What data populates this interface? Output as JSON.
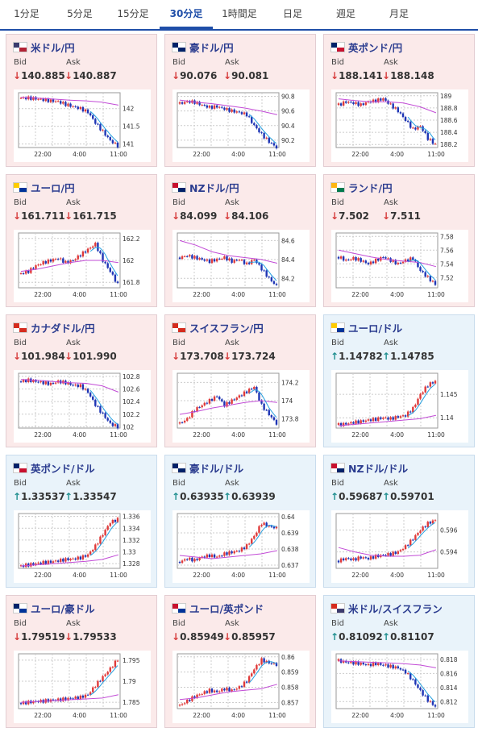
{
  "tabs": [
    {
      "label": "1分足",
      "active": false
    },
    {
      "label": "5分足",
      "active": false
    },
    {
      "label": "15分足",
      "active": false
    },
    {
      "label": "30分足",
      "active": true
    },
    {
      "label": "1時間足",
      "active": false
    },
    {
      "label": "日足",
      "active": false
    },
    {
      "label": "週足",
      "active": false
    },
    {
      "label": "月足",
      "active": false
    }
  ],
  "labels": {
    "bid": "Bid",
    "ask": "Ask"
  },
  "colors": {
    "up_bg": "#e9f3fa",
    "down_bg": "#fbeaea",
    "bull": "#e03a3a",
    "bear": "#1e35b5",
    "ma_long": "#c24bd6",
    "ma_short": "#25a0e0"
  },
  "x_ticks": [
    "22:00",
    "4:00",
    "11:00"
  ],
  "pairs": [
    {
      "name": "米ドル/円",
      "dir": "down",
      "arrow": "↓",
      "bid": "140.885",
      "ask": "140.887",
      "flag": "us",
      "chart_data": {
        "type": "candlestick",
        "ylim": [
          140.9,
          142.45
        ],
        "y_ticks": [
          "142",
          "141.5",
          "141"
        ],
        "trend": [
          142.3,
          142.3,
          142.28,
          142.25,
          142.22,
          142.2,
          142.12,
          142.06,
          142.0,
          141.9,
          141.6,
          141.35,
          141.1,
          140.95
        ],
        "ma_long": [
          142.32,
          142.3,
          142.27,
          142.24,
          142.22,
          142.18,
          142.1
        ]
      }
    },
    {
      "name": "豪ドル/円",
      "dir": "down",
      "arrow": "↓",
      "bid": "90.076",
      "ask": "90.081",
      "flag": "au",
      "chart_data": {
        "type": "candlestick",
        "ylim": [
          90.1,
          90.85
        ],
        "y_ticks": [
          "90.8",
          "90.6",
          "90.4",
          "90.2"
        ],
        "trend": [
          90.7,
          90.73,
          90.72,
          90.68,
          90.65,
          90.66,
          90.63,
          90.6,
          90.58,
          90.55,
          90.4,
          90.28,
          90.18,
          90.1
        ],
        "ma_long": [
          90.75,
          90.72,
          90.7,
          90.67,
          90.64,
          90.6,
          90.55
        ]
      }
    },
    {
      "name": "英ポンド/円",
      "dir": "down",
      "arrow": "↓",
      "bid": "188.141",
      "ask": "188.148",
      "flag": "gb",
      "chart_data": {
        "type": "candlestick",
        "ylim": [
          188.15,
          189.05
        ],
        "y_ticks": [
          "189",
          "188.8",
          "188.6",
          "188.4",
          "188.2"
        ],
        "trend": [
          188.85,
          188.9,
          188.88,
          188.85,
          188.9,
          188.92,
          188.95,
          188.85,
          188.75,
          188.6,
          188.45,
          188.5,
          188.3,
          188.2
        ],
        "ma_long": [
          188.95,
          188.92,
          188.9,
          188.9,
          188.88,
          188.82,
          188.72
        ]
      }
    },
    {
      "name": "ユーロ/円",
      "dir": "down",
      "arrow": "↓",
      "bid": "161.711",
      "ask": "161.715",
      "flag": "eu",
      "chart_data": {
        "type": "candlestick",
        "ylim": [
          161.75,
          162.25
        ],
        "y_ticks": [
          "162.2",
          "162",
          "161.8"
        ],
        "trend": [
          161.88,
          161.9,
          161.95,
          161.98,
          162.0,
          162.02,
          161.98,
          162.0,
          162.05,
          162.1,
          162.15,
          162.0,
          161.9,
          161.78
        ],
        "ma_long": [
          161.9,
          161.92,
          161.95,
          161.98,
          162.0,
          162.0,
          161.98
        ]
      }
    },
    {
      "name": "NZドル/円",
      "dir": "down",
      "arrow": "↓",
      "bid": "84.099",
      "ask": "84.106",
      "flag": "nz",
      "chart_data": {
        "type": "candlestick",
        "ylim": [
          84.1,
          84.68
        ],
        "y_ticks": [
          "84.6",
          "84.4",
          "84.2"
        ],
        "trend": [
          84.42,
          84.44,
          84.42,
          84.4,
          84.38,
          84.4,
          84.42,
          84.38,
          84.4,
          84.35,
          84.4,
          84.3,
          84.2,
          84.12
        ],
        "ma_long": [
          84.6,
          84.55,
          84.48,
          84.44,
          84.42,
          84.4,
          84.36
        ]
      }
    },
    {
      "name": "ランド/円",
      "dir": "down",
      "arrow": "↓",
      "bid": "7.502",
      "ask": "7.511",
      "flag": "za",
      "chart_data": {
        "type": "candlestick",
        "ylim": [
          7.505,
          7.585
        ],
        "y_ticks": [
          "7.58",
          "7.56",
          "7.54",
          "7.52"
        ],
        "trend": [
          7.55,
          7.545,
          7.548,
          7.545,
          7.54,
          7.545,
          7.55,
          7.545,
          7.54,
          7.545,
          7.548,
          7.53,
          7.52,
          7.51
        ],
        "ma_long": [
          7.56,
          7.555,
          7.55,
          7.546,
          7.544,
          7.542,
          7.536
        ]
      }
    },
    {
      "name": "カナダドル/円",
      "dir": "down",
      "arrow": "↓",
      "bid": "101.984",
      "ask": "101.990",
      "flag": "ca",
      "chart_data": {
        "type": "candlestick",
        "ylim": [
          101.98,
          102.85
        ],
        "y_ticks": [
          "102.8",
          "102.6",
          "102.4",
          "102.2",
          "102"
        ],
        "trend": [
          102.72,
          102.74,
          102.72,
          102.7,
          102.68,
          102.72,
          102.7,
          102.66,
          102.65,
          102.55,
          102.35,
          102.2,
          102.05,
          102.0
        ],
        "ma_long": [
          102.75,
          102.74,
          102.72,
          102.7,
          102.69,
          102.65,
          102.55
        ]
      }
    },
    {
      "name": "スイスフラン/円",
      "dir": "down",
      "arrow": "↓",
      "bid": "173.708",
      "ask": "173.724",
      "flag": "ch",
      "chart_data": {
        "type": "candlestick",
        "ylim": [
          173.7,
          174.3
        ],
        "y_ticks": [
          "174.2",
          "174",
          "173.8"
        ],
        "trend": [
          173.75,
          173.8,
          173.9,
          173.95,
          174.0,
          174.05,
          173.95,
          174.0,
          174.05,
          174.1,
          174.15,
          173.95,
          173.85,
          173.75
        ],
        "ma_long": [
          173.85,
          173.88,
          173.92,
          173.95,
          173.98,
          174.0,
          173.98
        ]
      }
    },
    {
      "name": "ユーロ/ドル",
      "dir": "up",
      "arrow": "↑",
      "bid": "1.14782",
      "ask": "1.14785",
      "flag": "eu",
      "chart_data": {
        "type": "candlestick",
        "ylim": [
          1.1378,
          1.1495
        ],
        "y_ticks": [
          "1.145",
          "1.14"
        ],
        "trend": [
          1.1385,
          1.1387,
          1.139,
          1.1392,
          1.1395,
          1.1397,
          1.14,
          1.1398,
          1.1402,
          1.1405,
          1.142,
          1.145,
          1.147,
          1.1478
        ],
        "ma_long": [
          1.1383,
          1.1386,
          1.1389,
          1.1392,
          1.1395,
          1.1398,
          1.1405
        ]
      }
    },
    {
      "name": "英ポンド/ドル",
      "dir": "up",
      "arrow": "↑",
      "bid": "1.33537",
      "ask": "1.33547",
      "flag": "gb",
      "chart_data": {
        "type": "candlestick",
        "ylim": [
          1.3272,
          1.3365
        ],
        "y_ticks": [
          "1.336",
          "1.334",
          "1.332",
          "1.33",
          "1.328"
        ],
        "trend": [
          1.3276,
          1.3278,
          1.328,
          1.3282,
          1.3283,
          1.3285,
          1.3287,
          1.3288,
          1.329,
          1.3295,
          1.331,
          1.333,
          1.335,
          1.3355
        ],
        "ma_long": [
          1.3276,
          1.3278,
          1.328,
          1.3282,
          1.3284,
          1.3287,
          1.3295
        ]
      }
    },
    {
      "name": "豪ドル/ドル",
      "dir": "up",
      "arrow": "↑",
      "bid": "0.63935",
      "ask": "0.63939",
      "flag": "au",
      "chart_data": {
        "type": "candlestick",
        "ylim": [
          0.6368,
          0.6402
        ],
        "y_ticks": [
          "0.64",
          "0.639",
          "0.638",
          "0.637"
        ],
        "trend": [
          0.6372,
          0.6374,
          0.6373,
          0.6375,
          0.6376,
          0.6375,
          0.6377,
          0.6378,
          0.6379,
          0.6382,
          0.6388,
          0.6396,
          0.6394,
          0.6393
        ],
        "ma_long": [
          0.6376,
          0.6375,
          0.6374,
          0.6375,
          0.6376,
          0.6377,
          0.6379
        ]
      }
    },
    {
      "name": "NZドル/ドル",
      "dir": "up",
      "arrow": "↑",
      "bid": "0.59687",
      "ask": "0.59701",
      "flag": "nz",
      "chart_data": {
        "type": "candlestick",
        "ylim": [
          0.5925,
          0.5975
        ],
        "y_ticks": [
          "0.596",
          "0.594"
        ],
        "trend": [
          0.5932,
          0.5934,
          0.5933,
          0.5935,
          0.5934,
          0.5936,
          0.5937,
          0.5938,
          0.594,
          0.5945,
          0.5952,
          0.596,
          0.5966,
          0.5969
        ],
        "ma_long": [
          0.5944,
          0.594,
          0.5937,
          0.5936,
          0.5936,
          0.5937,
          0.5942
        ]
      }
    },
    {
      "name": "ユーロ/豪ドル",
      "dir": "down",
      "arrow": "↓",
      "bid": "1.79519",
      "ask": "1.79533",
      "flag": "eu-au",
      "chart_data": {
        "type": "candlestick",
        "ylim": [
          1.7835,
          1.7965
        ],
        "y_ticks": [
          "1.795",
          "1.79",
          "1.785"
        ],
        "trend": [
          1.7848,
          1.785,
          1.7852,
          1.7853,
          1.7855,
          1.7856,
          1.7858,
          1.786,
          1.7862,
          1.7868,
          1.789,
          1.791,
          1.793,
          1.7952
        ],
        "ma_long": [
          1.785,
          1.7852,
          1.7854,
          1.7856,
          1.7858,
          1.786,
          1.7868
        ]
      }
    },
    {
      "name": "ユーロ/英ポンド",
      "dir": "down",
      "arrow": "↓",
      "bid": "0.85949",
      "ask": "0.85957",
      "flag": "eu-gb",
      "chart_data": {
        "type": "candlestick",
        "ylim": [
          0.8566,
          0.8602
        ],
        "y_ticks": [
          "0.86",
          "0.859",
          "0.858",
          "0.857"
        ],
        "trend": [
          0.8568,
          0.8571,
          0.8574,
          0.8576,
          0.8578,
          0.8577,
          0.8579,
          0.8578,
          0.858,
          0.8584,
          0.8592,
          0.8598,
          0.8596,
          0.8595
        ],
        "ma_long": [
          0.8572,
          0.8573,
          0.8575,
          0.8577,
          0.8578,
          0.8579,
          0.8582
        ]
      }
    },
    {
      "name": "米ドル/スイスフラン",
      "dir": "up",
      "arrow": "↑",
      "bid": "0.81092",
      "ask": "0.81107",
      "flag": "us-ch",
      "chart_data": {
        "type": "candlestick",
        "ylim": [
          0.811,
          0.8188
        ],
        "y_ticks": [
          "0.818",
          "0.816",
          "0.814",
          "0.812"
        ],
        "trend": [
          0.8178,
          0.8176,
          0.8175,
          0.8174,
          0.8172,
          0.8174,
          0.8172,
          0.817,
          0.8168,
          0.8162,
          0.815,
          0.8135,
          0.8122,
          0.8113
        ],
        "ma_long": [
          0.8178,
          0.8177,
          0.8176,
          0.8175,
          0.8174,
          0.8172,
          0.8168
        ]
      }
    }
  ]
}
